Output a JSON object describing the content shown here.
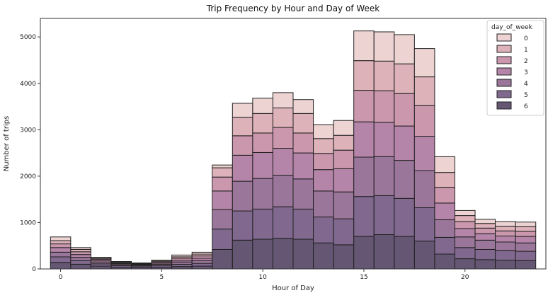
{
  "chart_data": {
    "type": "bar",
    "stacked": true,
    "title": "Trip Frequency by Hour and Day of Week",
    "xlabel": "Hour of Day",
    "ylabel": "Number of trips",
    "x": [
      0,
      1,
      2,
      3,
      4,
      5,
      6,
      7,
      8,
      9,
      10,
      11,
      12,
      13,
      14,
      15,
      16,
      17,
      18,
      19,
      20,
      21,
      22,
      23
    ],
    "xlim": [
      -1,
      24
    ],
    "ylim": [
      0,
      5400
    ],
    "xticks": [
      0,
      5,
      10,
      15,
      20
    ],
    "yticks": [
      0,
      1000,
      2000,
      3000,
      4000,
      5000
    ],
    "legend": {
      "title": "day_of_week",
      "position": "top-right"
    },
    "series": [
      {
        "name": "6",
        "color": "#4a3a5c",
        "values": [
          140,
          100,
          60,
          40,
          40,
          40,
          50,
          60,
          420,
          620,
          640,
          660,
          640,
          560,
          520,
          700,
          740,
          700,
          600,
          320,
          220,
          200,
          190,
          180
        ]
      },
      {
        "name": "5",
        "color": "#6a4d7a",
        "values": [
          120,
          80,
          50,
          30,
          25,
          30,
          50,
          60,
          440,
          630,
          650,
          680,
          650,
          560,
          560,
          860,
          840,
          820,
          720,
          360,
          240,
          220,
          210,
          200
        ]
      },
      {
        "name": "4",
        "color": "#8a5e8a",
        "values": [
          100,
          70,
          40,
          25,
          20,
          30,
          50,
          60,
          420,
          640,
          660,
          680,
          650,
          560,
          580,
          850,
          840,
          820,
          800,
          380,
          230,
          200,
          180,
          180
        ]
      },
      {
        "name": "3",
        "color": "#a8709a",
        "values": [
          100,
          60,
          30,
          20,
          15,
          25,
          40,
          50,
          400,
          560,
          560,
          580,
          560,
          460,
          500,
          760,
          740,
          740,
          740,
          360,
          180,
          140,
          130,
          140
        ]
      },
      {
        "name": "2",
        "color": "#c1859f",
        "values": [
          80,
          60,
          30,
          20,
          15,
          25,
          40,
          50,
          300,
          420,
          420,
          450,
          430,
          350,
          400,
          680,
          680,
          700,
          660,
          340,
          150,
          120,
          110,
          110
        ]
      },
      {
        "name": "1",
        "color": "#d7a5ad",
        "values": [
          70,
          50,
          20,
          15,
          10,
          20,
          30,
          40,
          200,
          400,
          420,
          420,
          420,
          320,
          320,
          640,
          640,
          640,
          620,
          320,
          130,
          100,
          100,
          100
        ]
      },
      {
        "name": "0",
        "color": "#ebcbcb",
        "values": [
          80,
          40,
          20,
          10,
          5,
          20,
          40,
          40,
          60,
          300,
          330,
          330,
          300,
          300,
          320,
          640,
          630,
          630,
          610,
          340,
          110,
          90,
          100,
          100
        ]
      }
    ]
  }
}
